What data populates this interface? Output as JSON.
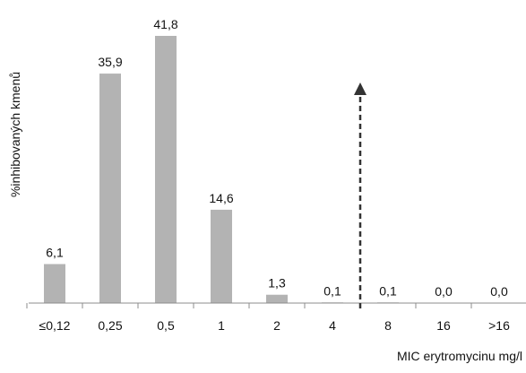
{
  "chart_data": {
    "type": "bar",
    "categories": [
      "≤0,12",
      "0,25",
      "0,5",
      "1",
      "2",
      "4",
      "8",
      "16",
      ">16"
    ],
    "values": [
      6.1,
      35.9,
      41.8,
      14.6,
      1.3,
      0.1,
      0.1,
      0.0,
      0.0
    ],
    "value_labels": [
      "6,1",
      "35,9",
      "41,8",
      "14,6",
      "1,3",
      "0,1",
      "0,1",
      "0,0",
      "0,0"
    ],
    "xlabel": "MIC erytromycinu mg/l",
    "ylabel": "%inhibovaných kmenů",
    "ylim": [
      0,
      45
    ],
    "grid": false,
    "legend": "none",
    "bar_color": "#b3b3b3",
    "annotation": {
      "type": "dashed-arrow-up",
      "between_categories": [
        "4",
        "8"
      ],
      "color": "#333333"
    }
  }
}
